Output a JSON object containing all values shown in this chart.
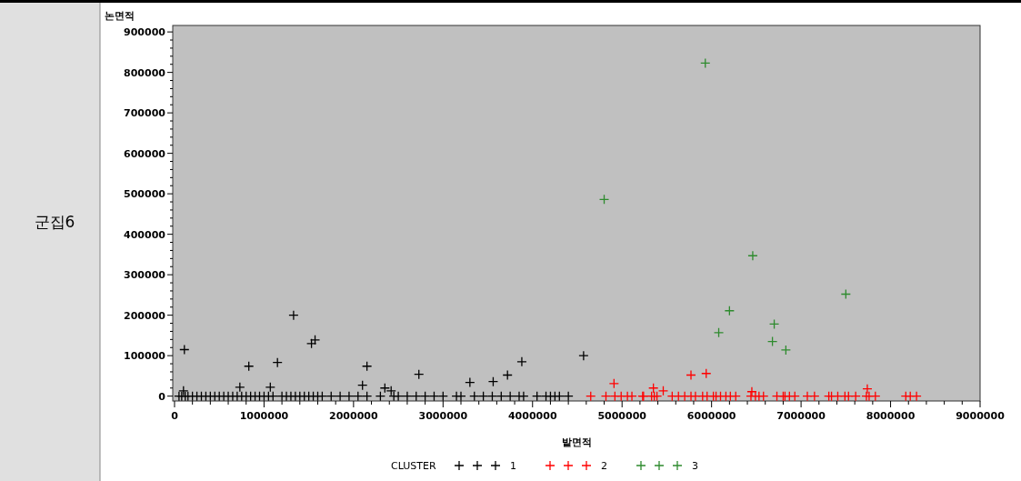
{
  "chart_data": {
    "type": "scatter",
    "xlabel": "밭면적",
    "ylabel": "논면적",
    "legend_title": "CLUSTER",
    "annotations": [
      "군집6"
    ],
    "legend": "bottom",
    "marker": "cross",
    "grid": false,
    "xlim": [
      -20000,
      9000000
    ],
    "ylim": [
      -12000,
      916000
    ],
    "xticks": [
      0,
      {
        "value": 200000,
        "label": null
      },
      {
        "value": 400000,
        "label": null
      },
      {
        "value": 600000,
        "label": null
      },
      {
        "value": 800000,
        "label": null
      },
      1000000,
      {
        "value": 1200000,
        "label": null
      },
      {
        "value": 1400000,
        "label": null
      },
      {
        "value": 1600000,
        "label": null
      },
      {
        "value": 1800000,
        "label": null
      },
      2000000,
      {
        "value": 2200000,
        "label": null
      },
      {
        "value": 2400000,
        "label": null
      },
      {
        "value": 2600000,
        "label": null
      },
      {
        "value": 2800000,
        "label": null
      },
      3000000,
      {
        "value": 3200000,
        "label": null
      },
      {
        "value": 3400000,
        "label": null
      },
      {
        "value": 3600000,
        "label": null
      },
      {
        "value": 3800000,
        "label": null
      },
      4000000,
      {
        "value": 4200000,
        "label": null
      },
      {
        "value": 4400000,
        "label": null
      },
      {
        "value": 4600000,
        "label": null
      },
      {
        "value": 4800000,
        "label": null
      },
      5000000,
      {
        "value": 5200000,
        "label": null
      },
      {
        "value": 5400000,
        "label": null
      },
      {
        "value": 5600000,
        "label": null
      },
      {
        "value": 5800000,
        "label": null
      },
      6000000,
      {
        "value": 6200000,
        "label": null
      },
      {
        "value": 6400000,
        "label": null
      },
      {
        "value": 6600000,
        "label": null
      },
      {
        "value": 6800000,
        "label": null
      },
      7000000,
      {
        "value": 7200000,
        "label": null
      },
      {
        "value": 7400000,
        "label": null
      },
      {
        "value": 7600000,
        "label": null
      },
      {
        "value": 7800000,
        "label": null
      },
      8000000,
      {
        "value": 8200000,
        "label": null
      },
      {
        "value": 8400000,
        "label": null
      },
      {
        "value": 8600000,
        "label": null
      },
      {
        "value": 8800000,
        "label": null
      },
      9000000
    ],
    "yticks": [
      0,
      {
        "value": 20000,
        "label": null
      },
      {
        "value": 40000,
        "label": null
      },
      {
        "value": 60000,
        "label": null
      },
      {
        "value": 80000,
        "label": null
      },
      100000,
      {
        "value": 120000,
        "label": null
      },
      {
        "value": 140000,
        "label": null
      },
      {
        "value": 160000,
        "label": null
      },
      {
        "value": 180000,
        "label": null
      },
      200000,
      {
        "value": 220000,
        "label": null
      },
      {
        "value": 240000,
        "label": null
      },
      {
        "value": 260000,
        "label": null
      },
      {
        "value": 280000,
        "label": null
      },
      300000,
      {
        "value": 320000,
        "label": null
      },
      {
        "value": 340000,
        "label": null
      },
      {
        "value": 360000,
        "label": null
      },
      {
        "value": 380000,
        "label": null
      },
      400000,
      {
        "value": 420000,
        "label": null
      },
      {
        "value": 440000,
        "label": null
      },
      {
        "value": 460000,
        "label": null
      },
      {
        "value": 480000,
        "label": null
      },
      500000,
      {
        "value": 520000,
        "label": null
      },
      {
        "value": 540000,
        "label": null
      },
      {
        "value": 560000,
        "label": null
      },
      {
        "value": 580000,
        "label": null
      },
      600000,
      {
        "value": 620000,
        "label": null
      },
      {
        "value": 640000,
        "label": null
      },
      {
        "value": 660000,
        "label": null
      },
      {
        "value": 680000,
        "label": null
      },
      700000,
      {
        "value": 720000,
        "label": null
      },
      {
        "value": 740000,
        "label": null
      },
      {
        "value": 760000,
        "label": null
      },
      {
        "value": 780000,
        "label": null
      },
      800000,
      {
        "value": 820000,
        "label": null
      },
      {
        "value": 840000,
        "label": null
      },
      {
        "value": 860000,
        "label": null
      },
      {
        "value": 880000,
        "label": null
      },
      900000
    ],
    "series": [
      {
        "name": "1",
        "color": "#000000",
        "x": [
          110000,
          1330000,
          1530000,
          1570000,
          100000,
          730000,
          830000,
          1070000,
          1150000,
          2100000,
          2150000,
          2350000,
          2420000,
          2730000,
          3300000,
          3560000,
          3720000,
          3880000,
          4570000,
          50000,
          80000,
          120000,
          150000,
          200000,
          250000,
          300000,
          350000,
          400000,
          450000,
          500000,
          550000,
          600000,
          650000,
          700000,
          750000,
          800000,
          850000,
          900000,
          950000,
          1000000,
          1050000,
          1100000,
          1200000,
          1250000,
          1300000,
          1350000,
          1400000,
          1450000,
          1500000,
          1550000,
          1600000,
          1650000,
          1750000,
          1850000,
          1950000,
          2050000,
          2150000,
          2300000,
          2450000,
          2500000,
          2600000,
          2700000,
          2800000,
          2900000,
          3000000,
          3150000,
          3200000,
          3350000,
          3450000,
          3550000,
          3650000,
          3750000,
          3850000,
          3900000,
          4050000,
          4150000,
          4200000,
          4250000,
          4300000,
          4400000
        ],
        "values": [
          115000,
          200000,
          130000,
          139000,
          13000,
          22000,
          74000,
          22000,
          83000,
          27000,
          74000,
          20000,
          13000,
          54000,
          34000,
          36000,
          52000,
          85000,
          100000,
          0,
          0,
          0,
          0,
          0,
          0,
          0,
          0,
          0,
          0,
          0,
          0,
          0,
          0,
          0,
          0,
          0,
          0,
          0,
          0,
          0,
          0,
          0,
          0,
          0,
          0,
          0,
          0,
          0,
          0,
          0,
          0,
          0,
          0,
          0,
          0,
          0,
          0,
          0,
          0,
          0,
          0,
          0,
          0,
          0,
          0,
          0,
          0,
          0,
          0,
          0,
          0,
          0,
          0,
          0,
          0,
          0,
          0,
          0,
          0,
          0
        ]
      },
      {
        "name": "2",
        "color": "#ff0000",
        "x": [
          4910000,
          5770000,
          5940000,
          5350000,
          5460000,
          6450000,
          7740000,
          4650000,
          4820000,
          4920000,
          4990000,
          5060000,
          5110000,
          5230000,
          5240000,
          5330000,
          5360000,
          5390000,
          5560000,
          5630000,
          5700000,
          5770000,
          5820000,
          5900000,
          5950000,
          6020000,
          6050000,
          6100000,
          6160000,
          6210000,
          6270000,
          6440000,
          6490000,
          6530000,
          6580000,
          6730000,
          6800000,
          6820000,
          6870000,
          6930000,
          7070000,
          7150000,
          7310000,
          7340000,
          7410000,
          7490000,
          7530000,
          7610000,
          7730000,
          7760000,
          7830000,
          8170000,
          8220000,
          8290000
        ],
        "values": [
          31000,
          52000,
          56000,
          20000,
          13000,
          11000,
          18000,
          0,
          0,
          0,
          0,
          0,
          0,
          0,
          0,
          0,
          0,
          0,
          0,
          0,
          0,
          0,
          0,
          0,
          0,
          0,
          0,
          0,
          0,
          0,
          0,
          0,
          0,
          0,
          0,
          0,
          0,
          0,
          0,
          0,
          0,
          0,
          0,
          0,
          0,
          0,
          0,
          0,
          0,
          0,
          0,
          0,
          0,
          0
        ]
      },
      {
        "name": "3",
        "color": "#2e8b2e",
        "x": [
          5930000,
          4800000,
          6460000,
          7500000,
          6200000,
          6700000,
          6080000,
          6680000,
          6830000
        ],
        "values": [
          823000,
          486000,
          347000,
          252000,
          211000,
          178000,
          157000,
          135000,
          114000
        ]
      }
    ]
  }
}
